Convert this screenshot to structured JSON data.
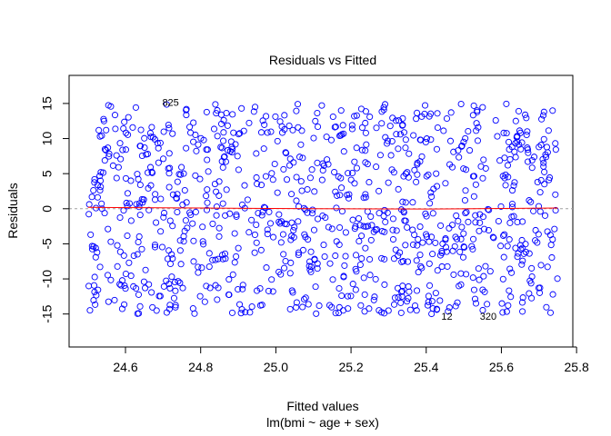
{
  "chart_data": {
    "type": "scatter",
    "title": "Residuals vs Fitted",
    "xlabel": "Fitted values",
    "sublabel": "lm(bmi ~ age + sex)",
    "ylabel": "Residuals",
    "xlim": [
      24.45,
      25.79
    ],
    "ylim": [
      -19.7,
      19.0
    ],
    "xticks": [
      24.6,
      24.8,
      25.0,
      25.2,
      25.4,
      25.6,
      25.8
    ],
    "xtick_labels": [
      "24.6",
      "24.8",
      "25.0",
      "25.2",
      "25.4",
      "25.6",
      "25.8"
    ],
    "yticks": [
      -15,
      -10,
      -5,
      0,
      5,
      10,
      15
    ],
    "ytick_labels": [
      "-15",
      "-10",
      "-5",
      "0",
      "5",
      "10",
      "15"
    ],
    "grid": false,
    "point_color": "#0000ff",
    "smooth_color": "#ff0000",
    "zero_line_color": "#a0a0a0",
    "annotations": [
      {
        "label": "825",
        "x": 24.72,
        "y": 15.2
      },
      {
        "label": "12",
        "x": 25.455,
        "y": -15.3
      },
      {
        "label": "320",
        "x": 25.565,
        "y": -15.3
      }
    ],
    "smooth_line": {
      "x": [
        24.5,
        24.8,
        25.1,
        25.4,
        25.75
      ],
      "y": [
        0.2,
        0.1,
        0.0,
        -0.05,
        0.1
      ]
    }
  }
}
